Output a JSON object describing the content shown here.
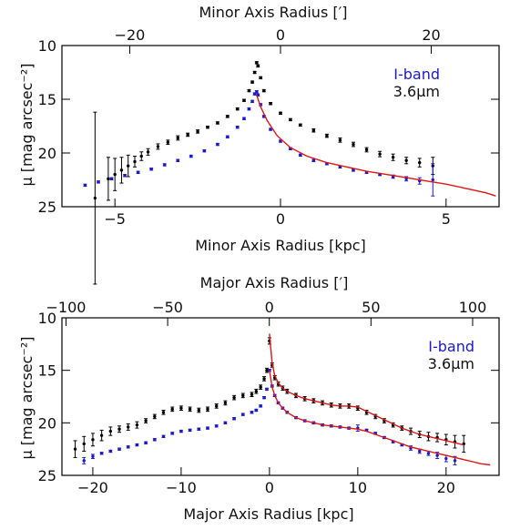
{
  "chart_data": [
    {
      "type": "scatter",
      "title": "",
      "xlabel": "Minor Axis Radius [kpc]",
      "x2label": "Minor Axis Radius [′]",
      "ylabel": "μ [mag arcsec⁻²]",
      "xlim": [
        -6.6,
        6.6
      ],
      "x2lim": [
        -29.0,
        29.0
      ],
      "ylim": [
        25,
        10
      ],
      "xticks": [
        -5,
        0,
        5
      ],
      "x2ticks": [
        -20,
        0,
        20
      ],
      "yticks": [
        10,
        15,
        20,
        25
      ],
      "legend_position": "top-right",
      "series": [
        {
          "name": "3.6μm",
          "color": "#000000",
          "x": [
            -5.6,
            -5.2,
            -5.0,
            -4.8,
            -4.6,
            -4.4,
            -4.2,
            -4.0,
            -3.7,
            -3.4,
            -3.1,
            -2.8,
            -2.5,
            -2.2,
            -1.9,
            -1.6,
            -1.3,
            -1.1,
            -0.95,
            -0.85,
            -0.78,
            -0.72,
            -0.68,
            -0.6,
            -0.5,
            -0.3,
            0.0,
            0.3,
            0.6,
            1.0,
            1.4,
            1.8,
            2.2,
            2.6,
            3.0,
            3.4,
            3.8,
            4.2,
            4.6
          ],
          "y": [
            24.2,
            22.4,
            22.0,
            21.6,
            21.2,
            20.8,
            20.3,
            19.9,
            19.4,
            19.0,
            18.6,
            18.3,
            18.0,
            17.6,
            17.2,
            16.6,
            15.9,
            15.1,
            14.2,
            13.4,
            12.5,
            11.6,
            11.9,
            13.0,
            14.2,
            15.4,
            16.3,
            16.9,
            17.4,
            17.9,
            18.4,
            18.8,
            19.2,
            19.7,
            20.1,
            20.4,
            20.7,
            20.9,
            21.2
          ],
          "yerr": [
            8.0,
            2.0,
            1.5,
            1.2,
            1.0,
            0.5,
            0.4,
            0.3,
            0.25,
            0.2,
            0.2,
            0.15,
            0.15,
            0.1,
            0.1,
            0.1,
            0.1,
            0.1,
            0.1,
            0.1,
            0.1,
            0.1,
            0.1,
            0.1,
            0.1,
            0.1,
            0.1,
            0.1,
            0.1,
            0.15,
            0.15,
            0.2,
            0.2,
            0.2,
            0.25,
            0.3,
            0.3,
            0.4,
            0.8
          ]
        },
        {
          "name": "I-band",
          "color": "#1a1acc",
          "x": [
            -5.9,
            -5.5,
            -5.1,
            -4.7,
            -4.3,
            -3.9,
            -3.5,
            -3.1,
            -2.7,
            -2.3,
            -1.9,
            -1.6,
            -1.3,
            -1.1,
            -0.95,
            -0.85,
            -0.78,
            -0.72,
            -0.68,
            -0.6,
            -0.5,
            -0.3,
            0.0,
            0.3,
            0.6,
            1.0,
            1.4,
            1.8,
            2.2,
            2.6,
            3.0,
            3.4,
            3.8,
            4.2,
            4.6
          ],
          "y": [
            23.0,
            22.7,
            22.4,
            22.1,
            21.8,
            21.5,
            21.1,
            20.7,
            20.3,
            19.8,
            19.2,
            18.5,
            17.6,
            16.8,
            15.9,
            15.2,
            14.5,
            14.3,
            14.6,
            15.5,
            16.6,
            17.8,
            18.9,
            19.6,
            20.2,
            20.7,
            21.0,
            21.3,
            21.6,
            21.8,
            22.0,
            22.2,
            22.4,
            22.6,
            22.5
          ],
          "yerr": [
            0.1,
            0.1,
            0.1,
            0.1,
            0.1,
            0.1,
            0.1,
            0.1,
            0.1,
            0.1,
            0.1,
            0.1,
            0.1,
            0.1,
            0.1,
            0.1,
            0.1,
            0.1,
            0.1,
            0.1,
            0.1,
            0.1,
            0.1,
            0.1,
            0.1,
            0.1,
            0.1,
            0.1,
            0.1,
            0.1,
            0.1,
            0.15,
            0.2,
            0.3,
            1.5
          ]
        },
        {
          "name": "",
          "kind": "line",
          "color": "#e01515",
          "x": [
            -0.72,
            -0.6,
            -0.4,
            -0.1,
            0.3,
            0.8,
            1.4,
            2.0,
            2.6,
            3.2,
            3.8,
            4.4,
            5.0,
            5.6,
            6.2,
            6.5
          ],
          "y": [
            14.6,
            15.7,
            17.0,
            18.4,
            19.5,
            20.3,
            20.9,
            21.3,
            21.7,
            22.0,
            22.3,
            22.6,
            22.9,
            23.3,
            23.7,
            24.0
          ]
        }
      ]
    },
    {
      "type": "scatter",
      "title": "",
      "xlabel": "Major Axis Radius [kpc]",
      "x2label": "Major Axis Radius [′]",
      "ylabel": "μ [mag arcsec⁻²]",
      "xlim": [
        -23.5,
        26.0
      ],
      "x2lim": [
        -102.0,
        113.0
      ],
      "ylim": [
        25,
        10
      ],
      "xticks": [
        -20,
        -10,
        0,
        10,
        20
      ],
      "x2ticks": [
        -100,
        -50,
        0,
        50,
        100
      ],
      "yticks": [
        10,
        15,
        20,
        25
      ],
      "legend_position": "top-right",
      "series": [
        {
          "name": "3.6μm",
          "color": "#000000",
          "x": [
            -22,
            -21,
            -20,
            -19,
            -18,
            -17,
            -16,
            -15,
            -14,
            -13,
            -12,
            -11,
            -10,
            -9,
            -8,
            -7,
            -6,
            -5,
            -4,
            -3,
            -2,
            -1.5,
            -1,
            -0.6,
            -0.3,
            0,
            0.3,
            0.6,
            1,
            1.5,
            2,
            3,
            4,
            5,
            6,
            7,
            8,
            9,
            10,
            11,
            12,
            13,
            14,
            15,
            16,
            17,
            18,
            19,
            20,
            21,
            22
          ],
          "y": [
            22.5,
            22.0,
            21.6,
            21.2,
            20.8,
            20.6,
            20.4,
            20.2,
            19.8,
            19.4,
            19.0,
            18.7,
            18.6,
            18.7,
            18.8,
            18.7,
            18.4,
            18.1,
            17.6,
            17.4,
            17.3,
            17.0,
            16.6,
            15.8,
            15.0,
            12.2,
            14.5,
            15.7,
            16.3,
            16.7,
            17.0,
            17.4,
            17.7,
            17.9,
            18.1,
            18.3,
            18.4,
            18.4,
            18.6,
            19.0,
            19.4,
            19.8,
            20.2,
            20.5,
            20.8,
            21.1,
            21.3,
            21.4,
            21.6,
            21.8,
            22.0
          ],
          "yerr": [
            0.8,
            0.7,
            0.6,
            0.5,
            0.4,
            0.3,
            0.3,
            0.3,
            0.2,
            0.2,
            0.2,
            0.2,
            0.2,
            0.2,
            0.2,
            0.2,
            0.2,
            0.2,
            0.2,
            0.2,
            0.2,
            0.2,
            0.2,
            0.2,
            0.2,
            0.3,
            0.2,
            0.2,
            0.2,
            0.2,
            0.2,
            0.2,
            0.2,
            0.2,
            0.2,
            0.2,
            0.2,
            0.2,
            0.2,
            0.2,
            0.2,
            0.2,
            0.2,
            0.2,
            0.3,
            0.3,
            0.4,
            0.4,
            0.5,
            0.6,
            0.8
          ]
        },
        {
          "name": "I-band",
          "color": "#1a1acc",
          "x": [
            -21,
            -20,
            -19,
            -18,
            -17,
            -16,
            -15,
            -14,
            -13,
            -12,
            -11,
            -10,
            -9,
            -8,
            -7,
            -6,
            -5,
            -4,
            -3,
            -2,
            -1.5,
            -1,
            -0.6,
            -0.3,
            0,
            0.3,
            0.6,
            1,
            1.5,
            2,
            3,
            4,
            5,
            6,
            7,
            8,
            9,
            10,
            11,
            12,
            13,
            14,
            15,
            16,
            17,
            18,
            19,
            20,
            21
          ],
          "y": [
            23.6,
            23.2,
            22.9,
            22.7,
            22.5,
            22.3,
            22.1,
            21.9,
            21.6,
            21.3,
            21.0,
            20.8,
            20.7,
            20.6,
            20.5,
            20.3,
            20.0,
            19.6,
            19.2,
            19.0,
            18.8,
            18.4,
            17.6,
            16.8,
            15.0,
            16.5,
            17.4,
            18.1,
            18.6,
            19.0,
            19.5,
            19.8,
            20.0,
            20.2,
            20.3,
            20.4,
            20.5,
            20.5,
            20.7,
            21.0,
            21.4,
            21.8,
            22.1,
            22.4,
            22.7,
            22.9,
            23.1,
            23.4,
            23.6
          ],
          "yerr": [
            0.3,
            0.2,
            0.1,
            0.1,
            0.1,
            0.1,
            0.1,
            0.1,
            0.1,
            0.1,
            0.1,
            0.1,
            0.1,
            0.1,
            0.1,
            0.1,
            0.1,
            0.1,
            0.1,
            0.1,
            0.1,
            0.1,
            0.1,
            0.1,
            0.1,
            0.1,
            0.1,
            0.1,
            0.1,
            0.1,
            0.1,
            0.1,
            0.1,
            0.1,
            0.1,
            0.1,
            0.1,
            0.3,
            0.1,
            0.1,
            0.1,
            0.1,
            0.1,
            0.2,
            0.2,
            0.2,
            0.3,
            0.3,
            0.4
          ]
        },
        {
          "name": "",
          "kind": "line",
          "color": "#e01515",
          "x": [
            0,
            0.3,
            0.6,
            1,
            1.5,
            2,
            3,
            4,
            5,
            6,
            7,
            8,
            9,
            10,
            11,
            12,
            13,
            14,
            15,
            16,
            17,
            18,
            19,
            20,
            21,
            22
          ],
          "y": [
            11.5,
            14.3,
            15.5,
            16.2,
            16.7,
            17.0,
            17.4,
            17.7,
            17.9,
            18.1,
            18.3,
            18.4,
            18.4,
            18.5,
            18.9,
            19.3,
            19.7,
            20.1,
            20.5,
            20.8,
            21.1,
            21.3,
            21.5,
            21.7,
            21.9,
            22.1
          ]
        },
        {
          "name": "",
          "kind": "line",
          "color": "#e01515",
          "x": [
            0,
            0.3,
            0.6,
            1,
            1.5,
            2,
            3,
            4,
            5,
            6,
            7,
            8,
            9,
            10,
            11,
            12,
            13,
            14,
            15,
            16,
            17,
            18,
            19,
            20,
            21,
            22,
            23,
            24,
            25
          ],
          "y": [
            15.0,
            16.6,
            17.4,
            18.1,
            18.6,
            19.0,
            19.5,
            19.8,
            20.0,
            20.2,
            20.3,
            20.4,
            20.5,
            20.6,
            20.8,
            21.1,
            21.4,
            21.7,
            22.0,
            22.3,
            22.5,
            22.7,
            22.9,
            23.1,
            23.3,
            23.5,
            23.7,
            23.9,
            24.0
          ]
        }
      ]
    }
  ]
}
